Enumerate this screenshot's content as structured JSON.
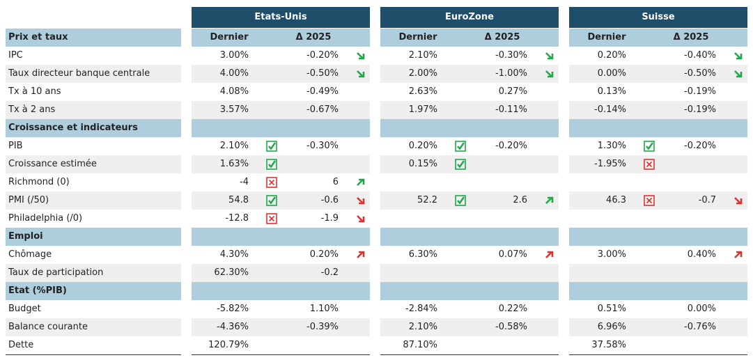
{
  "header": {
    "countries": [
      "Etats-Unis",
      "EuroZone",
      "Suisse"
    ],
    "col_last": "Dernier",
    "col_delta": "Δ 2025"
  },
  "sections": [
    {
      "title": "Prix et taux",
      "rows": [
        {
          "label": "IPC",
          "cells": [
            {
              "last": "3.00%",
              "delta": "-0.20%",
              "trend": "down-good"
            },
            {
              "last": "2.10%",
              "delta": "-0.30%",
              "trend": "down-good"
            },
            {
              "last": "0.20%",
              "delta": "-0.40%",
              "trend": "down-good"
            }
          ]
        },
        {
          "label": "Taux directeur banque centrale",
          "cells": [
            {
              "last": "4.00%",
              "delta": "-0.50%",
              "trend": "down-good"
            },
            {
              "last": "2.00%",
              "delta": "-1.00%",
              "trend": "down-good"
            },
            {
              "last": "0.00%",
              "delta": "-0.50%",
              "trend": "down-good"
            }
          ]
        },
        {
          "label": "Tx à 10 ans",
          "cells": [
            {
              "last": "4.08%",
              "delta": "-0.49%"
            },
            {
              "last": "2.63%",
              "delta": "0.27%"
            },
            {
              "last": "0.13%",
              "delta": "-0.19%"
            }
          ]
        },
        {
          "label": "Tx à 2 ans",
          "cells": [
            {
              "last": "3.57%",
              "delta": "-0.67%"
            },
            {
              "last": "1.97%",
              "delta": "-0.11%"
            },
            {
              "last": "-0.14%",
              "delta": "-0.19%"
            }
          ]
        }
      ]
    },
    {
      "title": "Croissance et indicateurs",
      "rows": [
        {
          "label": "PIB",
          "cells": [
            {
              "last": "2.10%",
              "status": "ok",
              "delta": "-0.30%"
            },
            {
              "last": "0.20%",
              "status": "ok",
              "delta": "-0.20%"
            },
            {
              "last": "1.30%",
              "status": "ok",
              "delta": "-0.20%"
            }
          ]
        },
        {
          "label": "Croissance estimée",
          "cells": [
            {
              "last": "1.63%",
              "status": "ok"
            },
            {
              "last": "0.15%",
              "status": "ok"
            },
            {
              "last": "-1.95%",
              "status": "ko"
            }
          ]
        },
        {
          "label": "Richmond (0)",
          "cells": [
            {
              "last": "-4",
              "status": "ko",
              "delta": "6",
              "trend": "up-good"
            },
            {},
            {}
          ]
        },
        {
          "label": "PMI (/50)",
          "cells": [
            {
              "last": "54.8",
              "status": "ok",
              "delta": "-0.6",
              "trend": "down-bad"
            },
            {
              "last": "52.2",
              "status": "ok",
              "delta": "2.6",
              "trend": "up-good"
            },
            {
              "last": "46.3",
              "status": "ko",
              "delta": "-0.7",
              "trend": "down-bad"
            }
          ]
        },
        {
          "label": "Philadelphia (/0)",
          "cells": [
            {
              "last": "-12.8",
              "status": "ko",
              "delta": "-1.9",
              "trend": "down-bad"
            },
            {},
            {}
          ]
        }
      ]
    },
    {
      "title": "Emploi",
      "rows": [
        {
          "label": "Chômage",
          "cells": [
            {
              "last": "4.30%",
              "delta": "0.20%",
              "trend": "up-bad"
            },
            {
              "last": "6.30%",
              "delta": "0.07%",
              "trend": "up-bad"
            },
            {
              "last": "3.00%",
              "delta": "0.40%",
              "trend": "up-bad"
            }
          ]
        },
        {
          "label": "Taux de participation",
          "cells": [
            {
              "last": "62.30%",
              "delta": "-0.2"
            },
            {},
            {}
          ]
        }
      ]
    },
    {
      "title": "Etat (%PIB)",
      "rows": [
        {
          "label": "Budget",
          "cells": [
            {
              "last": "-5.82%",
              "delta": "1.10%"
            },
            {
              "last": "-2.84%",
              "delta": "0.22%"
            },
            {
              "last": "0.51%",
              "delta": "0.00%"
            }
          ]
        },
        {
          "label": "Balance courante",
          "cells": [
            {
              "last": "-4.36%",
              "delta": "-0.39%"
            },
            {
              "last": "2.10%",
              "delta": "-0.58%"
            },
            {
              "last": "6.96%",
              "delta": "-0.76%"
            }
          ]
        },
        {
          "label": "Dette",
          "cells": [
            {
              "last": "120.79%"
            },
            {
              "last": "87.10%"
            },
            {
              "last": "37.58%"
            }
          ]
        }
      ]
    }
  ]
}
